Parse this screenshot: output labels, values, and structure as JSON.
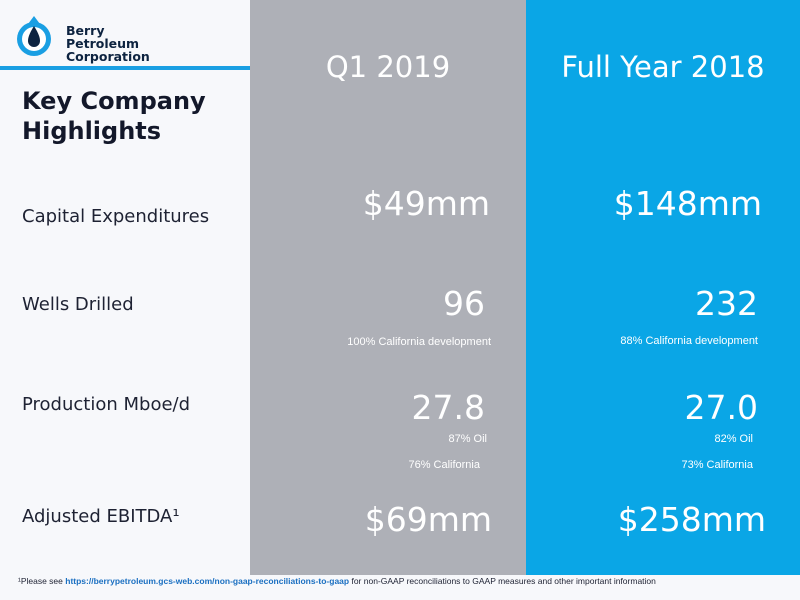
{
  "logo": {
    "line1": "Berry",
    "line2": "Petroleum",
    "line3": "Corporation"
  },
  "title": "Key Company Highlights",
  "columns": {
    "q1": "Q1 2019",
    "fy": "Full Year 2018"
  },
  "rows": {
    "capex": {
      "label": "Capital Expenditures",
      "q1": "$49mm",
      "fy": "$148mm"
    },
    "wells": {
      "label": "Wells Drilled",
      "q1": "96",
      "q1_note": "100% California development",
      "fy": "232",
      "fy_note": "88% California development"
    },
    "production": {
      "label": "Production Mboe/d",
      "q1": "27.8",
      "q1_oil": "87% Oil",
      "q1_ca": "76% California",
      "fy": "27.0",
      "fy_oil": "82% Oil",
      "fy_ca": "73% California"
    },
    "ebitda": {
      "label": "Adjusted EBITDA¹",
      "q1": "$69mm",
      "fy": "$258mm"
    }
  },
  "footnote": {
    "prefix": "¹Please see ",
    "link": "https://berrypetroleum.gcs-web.com/non-gaap-reconciliations-to-gaap",
    "suffix": " for non-GAAP reconciliations to GAAP measures and other important information"
  },
  "colors": {
    "q1_column": "#aeb0b7",
    "fy_column": "#0aa6e6",
    "brand_blue": "#1a9fe3",
    "brand_navy": "#0d2340"
  }
}
